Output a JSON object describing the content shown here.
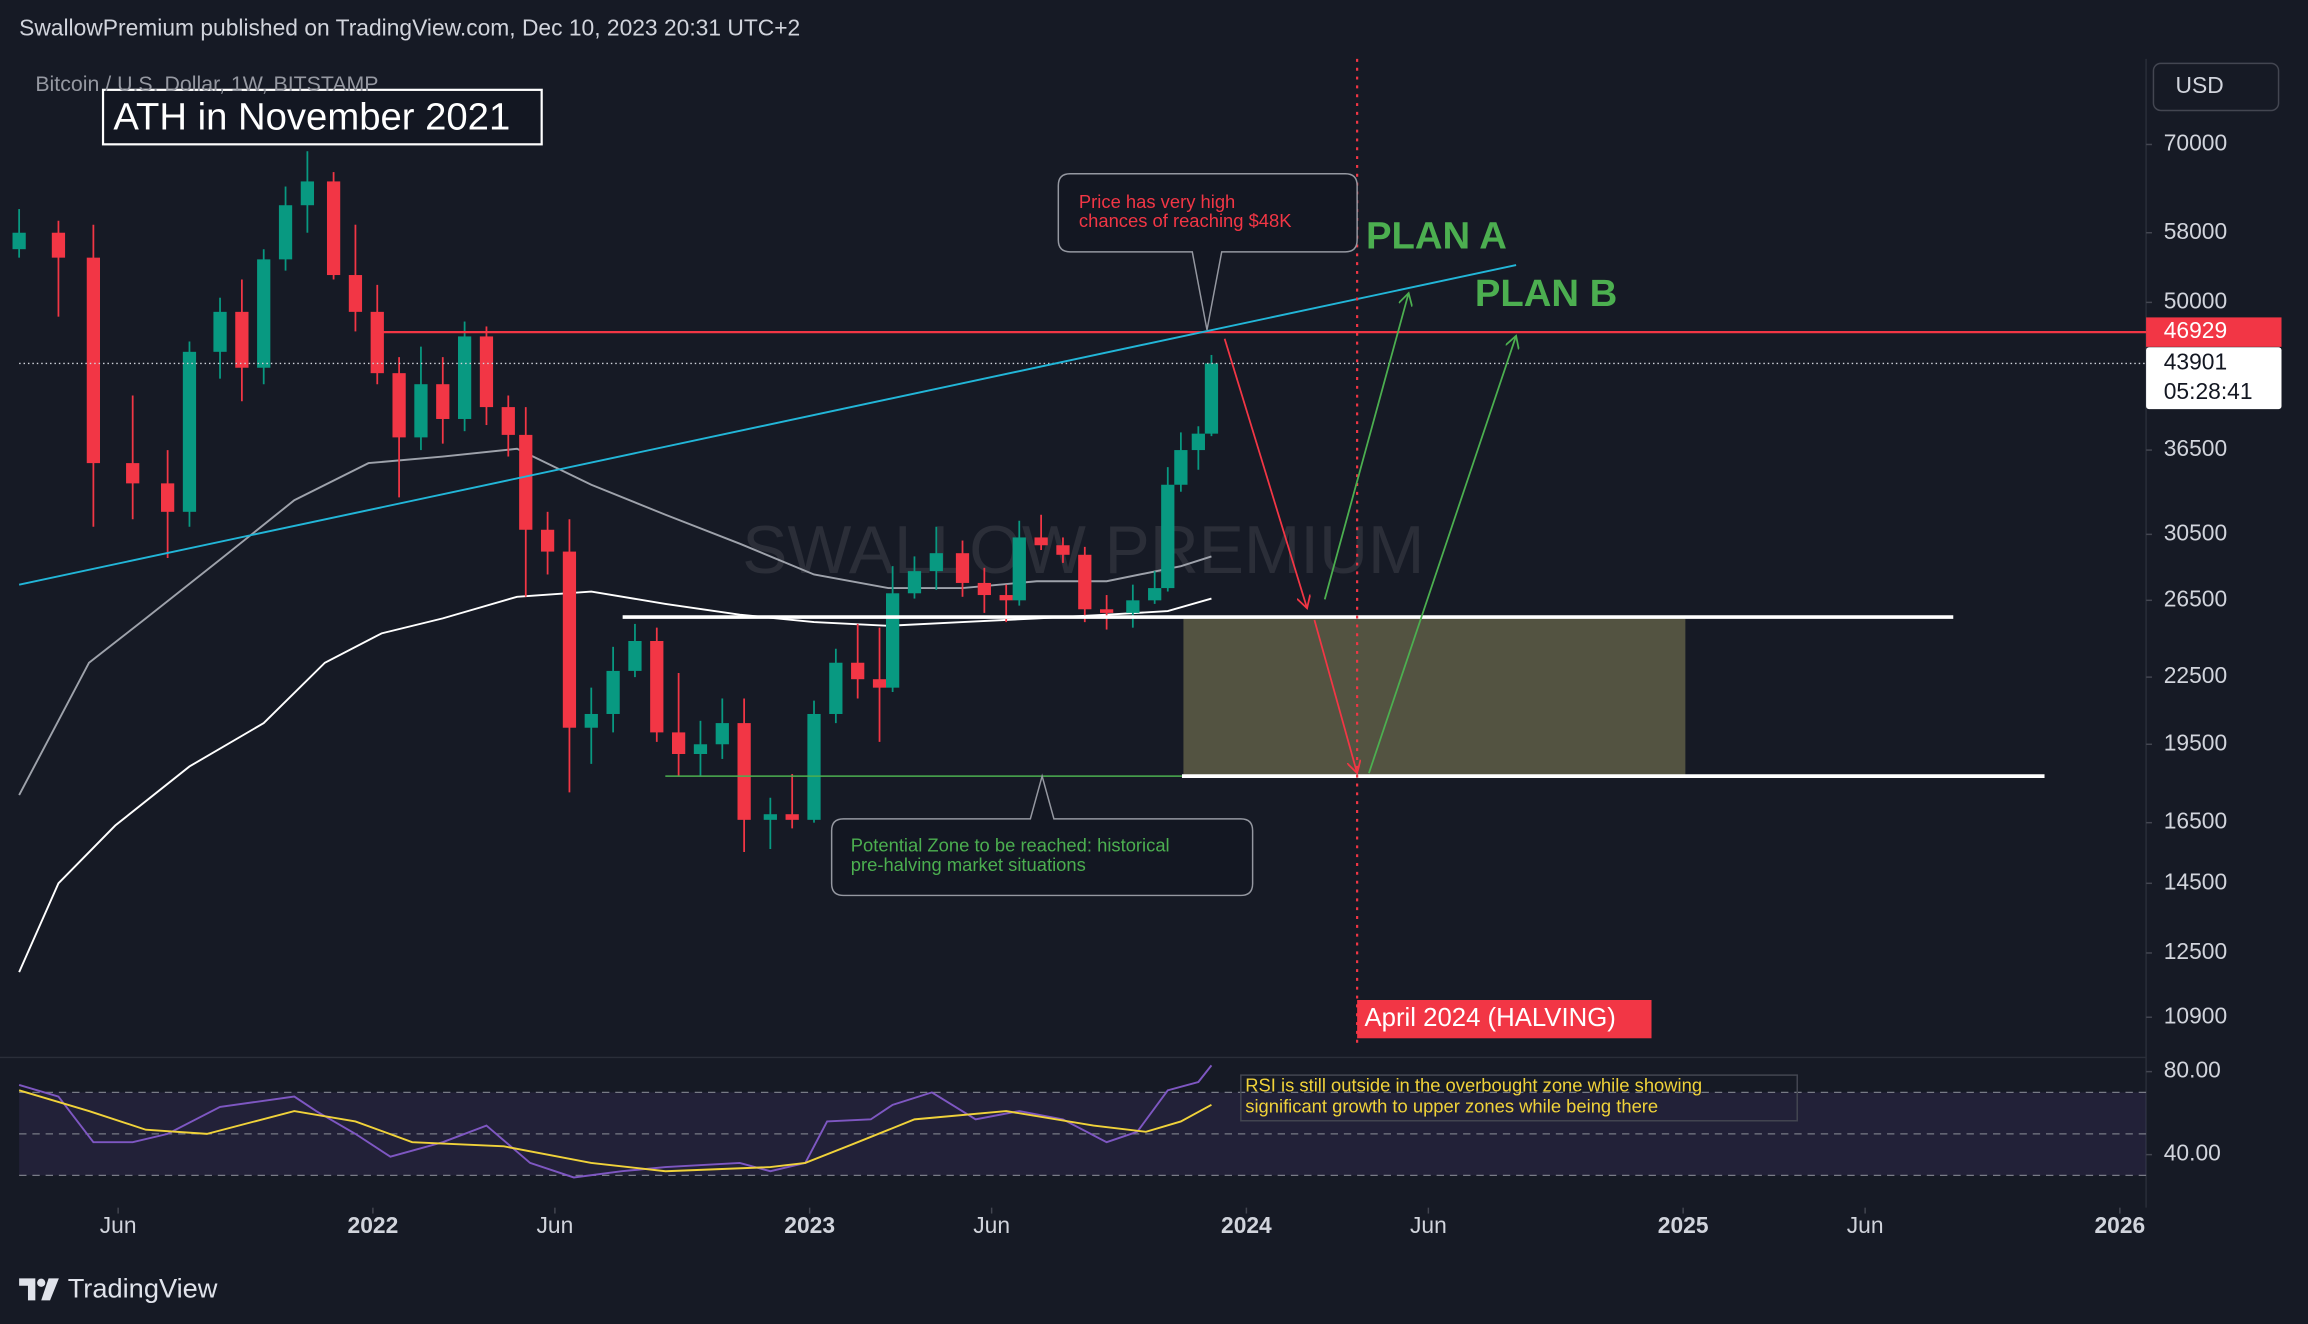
{
  "header": {
    "title": "SwallowPremium published on TradingView.com, Dec 10, 2023 20:31 UTC+2",
    "symbol": "Bitcoin / U.S. Dollar, 1W, BITSTAMP",
    "currency": "USD"
  },
  "chart_data": {
    "type": "candlestick",
    "log_scale": true,
    "grid": false,
    "up_color": "#089981",
    "down_color": "#f23645",
    "x": [
      2021.19,
      2021.28,
      2021.36,
      2021.45,
      2021.53,
      2021.58,
      2021.65,
      2021.7,
      2021.75,
      2021.8,
      2021.85,
      2021.91,
      2021.96,
      2022.01,
      2022.06,
      2022.11,
      2022.16,
      2022.21,
      2022.26,
      2022.31,
      2022.35,
      2022.4,
      2022.45,
      2022.5,
      2022.55,
      2022.6,
      2022.65,
      2022.7,
      2022.75,
      2022.8,
      2022.85,
      2022.91,
      2022.96,
      2023.01,
      2023.06,
      2023.11,
      2023.16,
      2023.19,
      2023.24,
      2023.29,
      2023.35,
      2023.4,
      2023.45,
      2023.48,
      2023.53,
      2023.58,
      2023.63,
      2023.68,
      2023.74,
      2023.79,
      2023.82,
      2023.85,
      2023.89,
      2023.92
    ],
    "open": [
      56000,
      58000,
      55000,
      35500,
      34000,
      32000,
      45000,
      49000,
      43500,
      54800,
      61500,
      64700,
      53000,
      49000,
      43000,
      37500,
      42000,
      39000,
      46500,
      40000,
      37700,
      30800,
      29400,
      20200,
      20800,
      22800,
      24300,
      20000,
      19100,
      19500,
      20400,
      16600,
      16800,
      16600,
      20800,
      23200,
      22400,
      22000,
      26900,
      28200,
      29300,
      27500,
      26800,
      26500,
      30300,
      29800,
      29200,
      26000,
      25800,
      26500,
      27200,
      33900,
      36500,
      37800
    ],
    "high": [
      61000,
      59500,
      59000,
      41000,
      36500,
      46000,
      50500,
      52500,
      56000,
      64000,
      69000,
      66000,
      59000,
      51900,
      44500,
      45500,
      44500,
      48000,
      47500,
      41000,
      40000,
      32000,
      31500,
      22000,
      24000,
      25200,
      25000,
      22700,
      20500,
      21500,
      21500,
      17400,
      18300,
      21400,
      23900,
      25200,
      25000,
      28500,
      29100,
      31000,
      30100,
      28400,
      27400,
      31400,
      31800,
      30300,
      29700,
      26800,
      27400,
      28200,
      35200,
      37900,
      38400,
      44700
    ],
    "low": [
      55000,
      48500,
      31000,
      31500,
      29000,
      31000,
      42500,
      40500,
      42000,
      53500,
      58000,
      52500,
      47000,
      42000,
      33000,
      36500,
      37000,
      38000,
      38500,
      36000,
      26700,
      28000,
      17600,
      18700,
      20000,
      22500,
      19600,
      18200,
      18200,
      18900,
      15500,
      15600,
      16300,
      16500,
      20400,
      21500,
      19600,
      21800,
      26600,
      27100,
      26700,
      25800,
      25300,
      26200,
      29500,
      28700,
      25300,
      24900,
      25000,
      26300,
      27000,
      33400,
      35000,
      37600
    ],
    "close": [
      58000,
      55000,
      35500,
      34000,
      32000,
      45000,
      49000,
      43500,
      54800,
      61500,
      64700,
      53000,
      49000,
      43000,
      37500,
      42000,
      39000,
      46500,
      40000,
      37700,
      30800,
      29400,
      20200,
      20800,
      22800,
      24300,
      20000,
      19100,
      19500,
      20400,
      16600,
      16800,
      16600,
      20800,
      23200,
      22400,
      22000,
      26900,
      28200,
      29300,
      27500,
      26800,
      26500,
      30300,
      29800,
      29200,
      26000,
      25800,
      26500,
      27200,
      33900,
      36500,
      37800,
      43900
    ],
    "moving_averages": [
      {
        "color": "#9ea2ab",
        "x": [
          2021.19,
          2021.35,
          2021.48,
          2021.65,
          2021.82,
          2021.99,
          2022.16,
          2022.33,
          2022.5,
          2022.67,
          2022.84,
          2023.01,
          2023.18,
          2023.35,
          2023.52,
          2023.68,
          2023.85,
          2023.92
        ],
        "values": [
          17500,
          23200,
          25500,
          28900,
          32800,
          35500,
          36000,
          36600,
          33900,
          31800,
          29900,
          28000,
          27200,
          27200,
          27600,
          27600,
          28500,
          29100
        ]
      },
      {
        "color": "#ffffff",
        "x": [
          2021.19,
          2021.28,
          2021.41,
          2021.58,
          2021.75,
          2021.89,
          2022.02,
          2022.16,
          2022.33,
          2022.5,
          2022.67,
          2022.84,
          2023.01,
          2023.18,
          2023.35,
          2023.52,
          2023.68,
          2023.82,
          2023.92
        ],
        "values": [
          12000,
          14500,
          16400,
          18600,
          20400,
          23200,
          24700,
          25500,
          26700,
          27000,
          26300,
          25700,
          25300,
          25100,
          25300,
          25500,
          25700,
          25900,
          26600
        ]
      }
    ],
    "xlim": [
      2021.19,
      2026.06
    ],
    "xticks": [
      {
        "value": 2021.4167,
        "label": "Jun"
      },
      2022,
      {
        "value": 2022.4167,
        "label": "Jun"
      },
      2023,
      {
        "value": 2023.4167,
        "label": "Jun"
      },
      2024,
      {
        "value": 2024.4167,
        "label": "Jun"
      },
      2025,
      {
        "value": 2025.4167,
        "label": "Jun"
      },
      2026
    ],
    "ylim": [
      10100,
      84000
    ],
    "yticks": [
      70000,
      58000,
      50000,
      36500,
      30500,
      26500,
      22500,
      19500,
      16500,
      14500,
      12500,
      10900
    ],
    "level": 46929,
    "level_color": "#f23645",
    "last_price": 43901,
    "countdown": "05:28:41",
    "rsi": {
      "color": "#7e57c2",
      "ma_color": "#f0d23a",
      "x": [
        2021.19,
        2021.28,
        2021.36,
        2021.45,
        2021.53,
        2021.65,
        2021.82,
        2021.87,
        2021.96,
        2022.04,
        2022.16,
        2022.26,
        2022.36,
        2022.46,
        2022.57,
        2022.67,
        2022.84,
        2022.91,
        2022.99,
        2023.04,
        2023.14,
        2023.19,
        2023.28,
        2023.38,
        2023.48,
        2023.58,
        2023.68,
        2023.75,
        2023.82,
        2023.89,
        2023.92
      ],
      "values": [
        73.6,
        68,
        46,
        46,
        50,
        63,
        68,
        61,
        50,
        39,
        46,
        54,
        36,
        29,
        32,
        34,
        36,
        32,
        36,
        56,
        57,
        64,
        70,
        57,
        61,
        57,
        46,
        51,
        71,
        75,
        83
      ],
      "ma_x": [
        2021.19,
        2021.35,
        2021.48,
        2021.62,
        2021.82,
        2021.96,
        2022.09,
        2022.3,
        2022.5,
        2022.67,
        2022.91,
        2022.99,
        2023.11,
        2023.24,
        2023.45,
        2023.65,
        2023.77,
        2023.85,
        2023.92
      ],
      "ma_values": [
        71,
        61,
        52,
        50,
        61,
        56,
        46,
        44,
        36,
        32,
        34,
        36,
        46,
        57,
        61,
        54,
        51,
        56,
        64
      ],
      "ylim": [
        18,
        84
      ],
      "levels": [
        70,
        50,
        30
      ],
      "yticks": [
        {
          "value": 80,
          "label": "80.00"
        },
        {
          "value": 40,
          "label": "40.00"
        }
      ]
    }
  },
  "annotations": {
    "ath": "ATH in November 2021",
    "price_note": [
      "Price has very high",
      "chances of reaching $48K"
    ],
    "plan_a": "PLAN A",
    "plan_b": "PLAN B",
    "watermark": "SWALLOW PREMIUM",
    "zone_note": [
      "Potential Zone to be reached: historical",
      "pre-halving market situations"
    ],
    "halving": "April 2024 (HALVING)",
    "rsi_note": [
      "RSI is still outside in the overbought zone while showing",
      "significant growth to upper zones while being there"
    ]
  },
  "footer": {
    "brand": "TradingView"
  }
}
